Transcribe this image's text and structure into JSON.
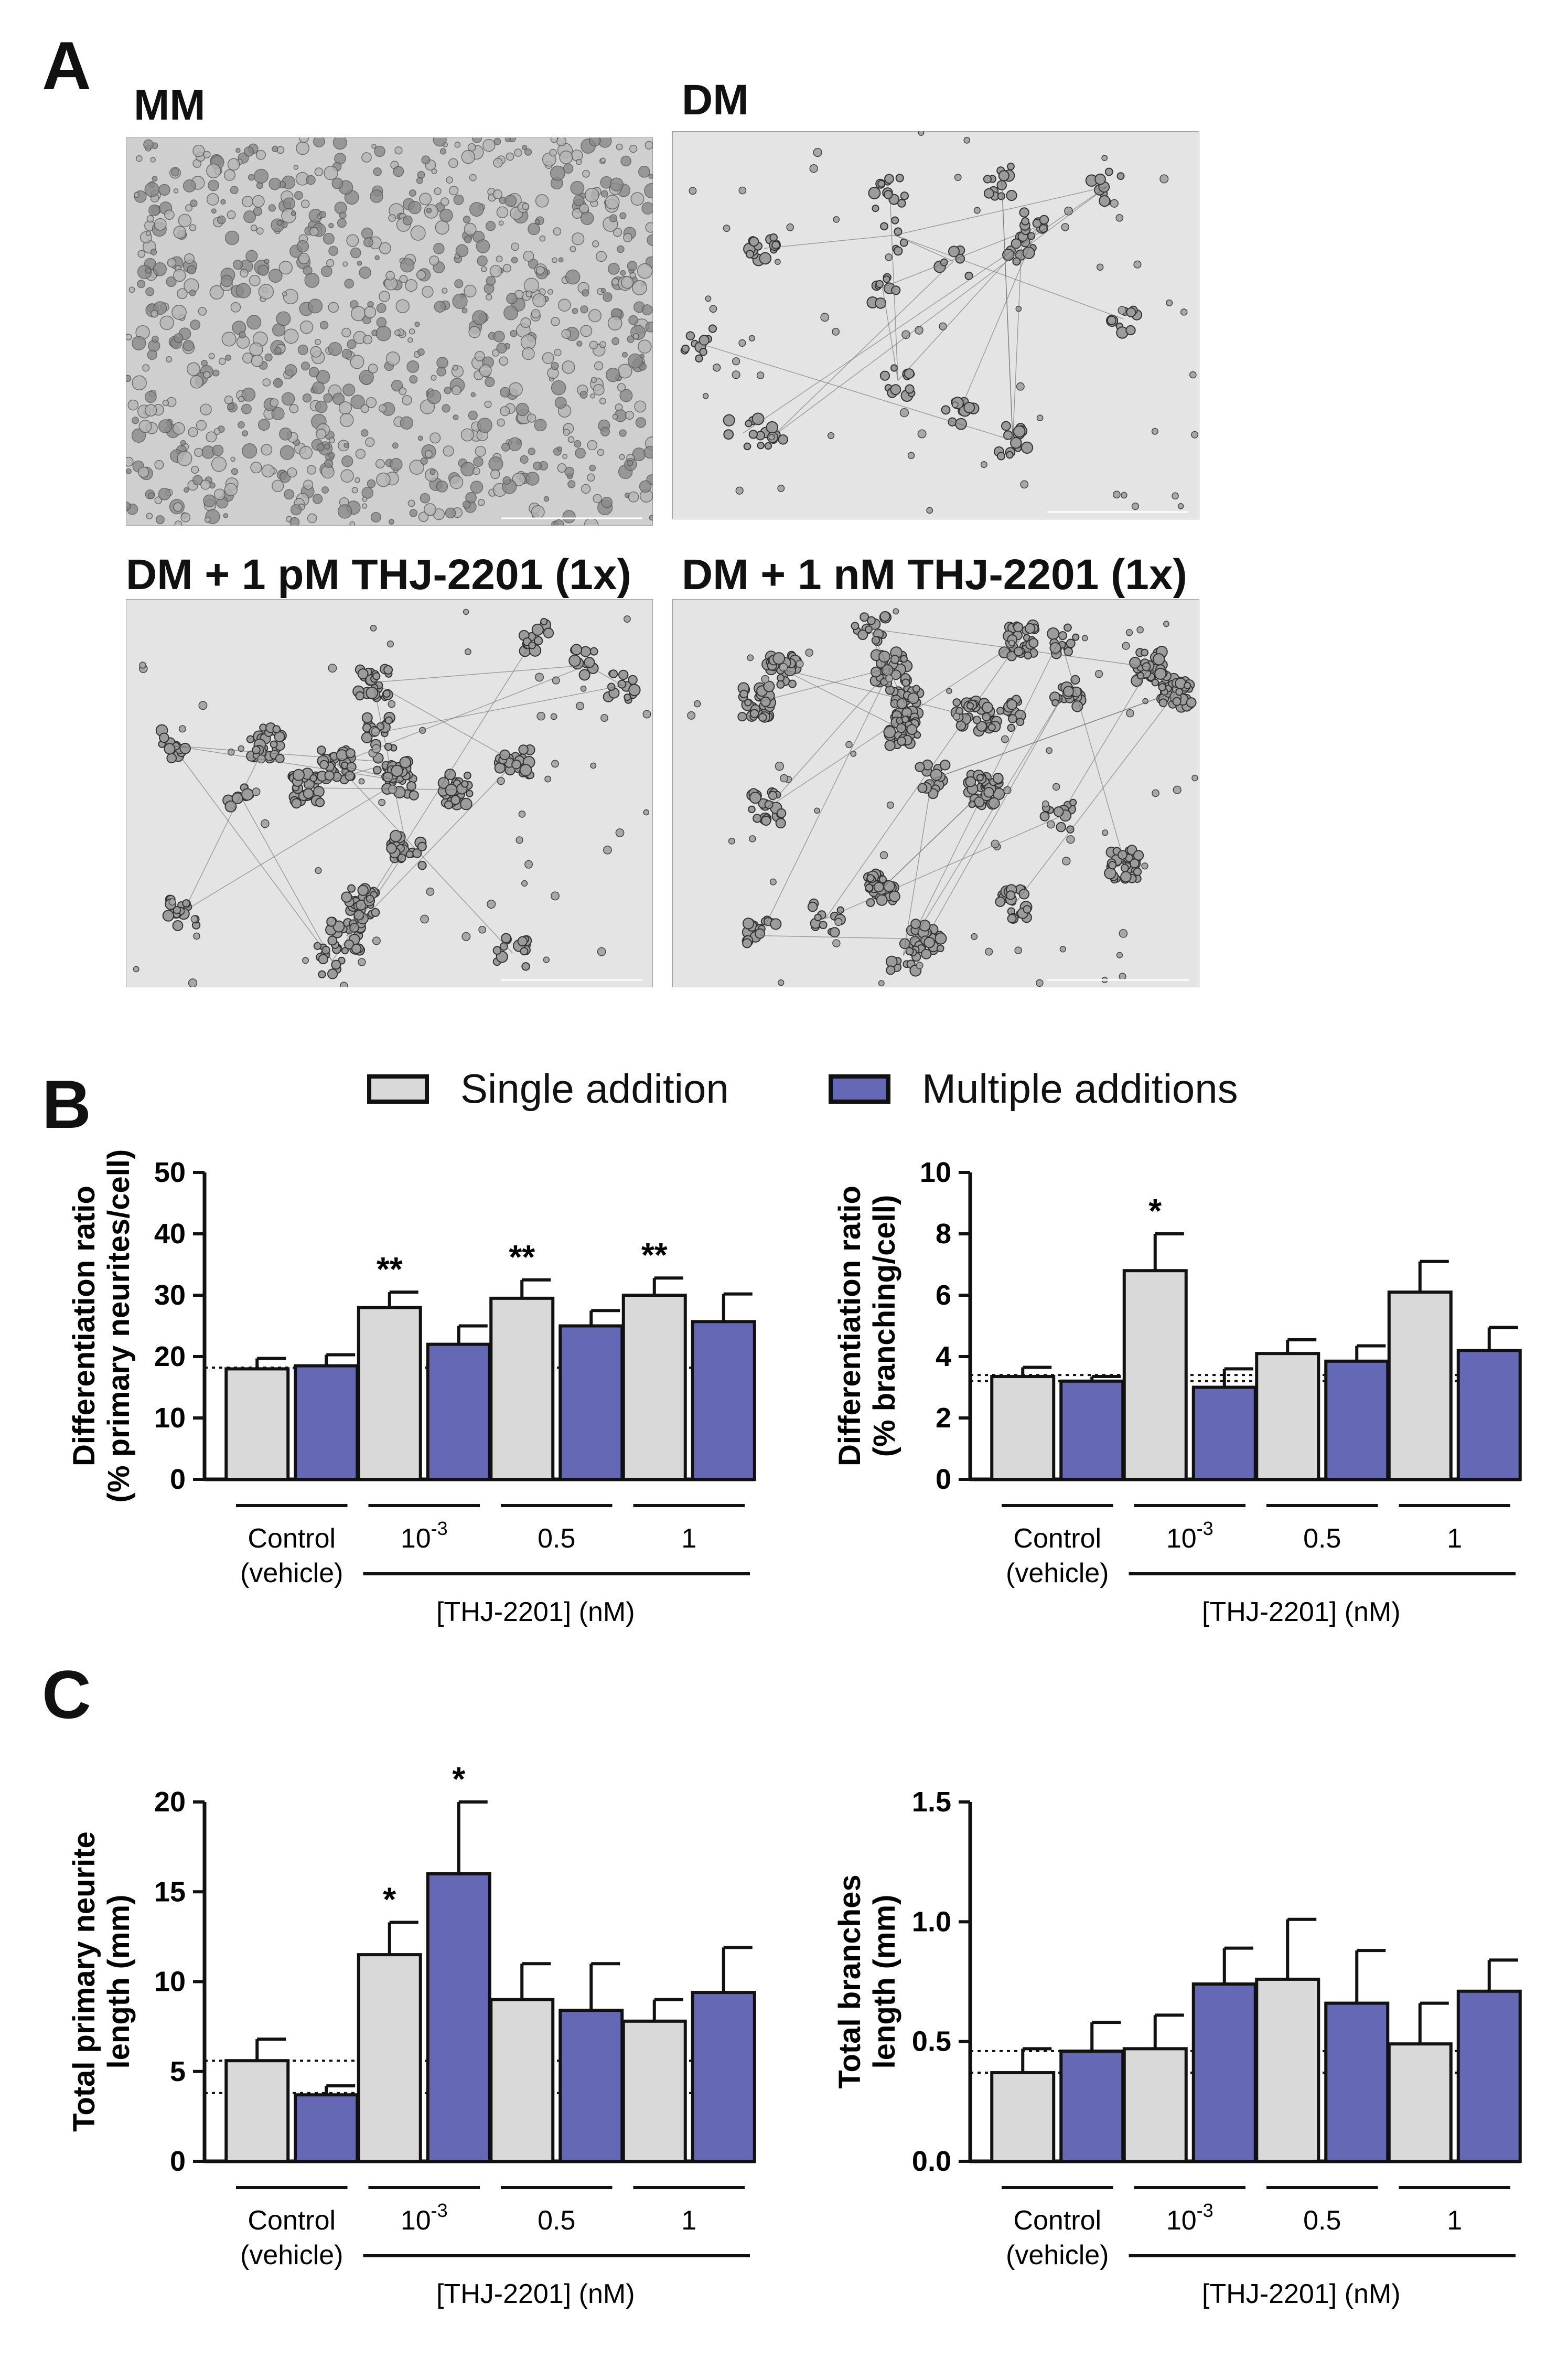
{
  "panels": {
    "A": {
      "letter": "A",
      "images": [
        {
          "label": "MM",
          "style": "dense"
        },
        {
          "label": "DM",
          "style": "sparse"
        },
        {
          "label": "DM + 1 pM THJ-2201 (1x)",
          "style": "clustered"
        },
        {
          "label": "DM + 1 nM THJ-2201  (1x)",
          "style": "clustered-heavy"
        }
      ]
    },
    "B": {
      "letter": "B"
    },
    "C": {
      "letter": "C"
    }
  },
  "legend": {
    "items": [
      {
        "label": "Single addition",
        "color": "#d9d9d9"
      },
      {
        "label": "Multiple additions",
        "color": "#6568b4"
      }
    ]
  },
  "colors": {
    "single": "#d9d9d9",
    "multiple": "#6568b4",
    "axis": "#111111"
  },
  "chart_data": [
    {
      "type": "bar",
      "ylabel": [
        "Differentiation ratio",
        "(% primary neurites/cell)"
      ],
      "ylim": [
        0,
        50
      ],
      "yticks": [
        0,
        10,
        20,
        30,
        40,
        50
      ],
      "categories": [
        "Control\n(vehicle)",
        "10-3",
        "0.5",
        "1"
      ],
      "group_label": "[THJ-2201] (nM)",
      "series": [
        {
          "name": "Single addition",
          "values": [
            18,
            28,
            29.5,
            30
          ],
          "errors": [
            1.7,
            2.5,
            3,
            2.8
          ]
        },
        {
          "name": "Multiple additions",
          "values": [
            18.5,
            22,
            25,
            25.7
          ],
          "errors": [
            1.8,
            3,
            2.5,
            4.5
          ]
        }
      ],
      "reference_lines": [
        18.2
      ],
      "annotations": [
        {
          "group": 1,
          "series": 0,
          "text": "**"
        },
        {
          "group": 2,
          "series": 0,
          "text": "**"
        },
        {
          "group": 3,
          "series": 0,
          "text": "**"
        }
      ]
    },
    {
      "type": "bar",
      "ylabel": [
        "Differentiation ratio",
        "(% branching/cell)"
      ],
      "ylim": [
        0,
        10
      ],
      "yticks": [
        0,
        2,
        4,
        6,
        8,
        10
      ],
      "categories": [
        "Control\n(vehicle)",
        "10-3",
        "0.5",
        "1"
      ],
      "group_label": "[THJ-2201] (nM)",
      "series": [
        {
          "name": "Single addition",
          "values": [
            3.35,
            6.8,
            4.1,
            6.1
          ],
          "errors": [
            0.3,
            1.2,
            0.45,
            1.0
          ]
        },
        {
          "name": "Multiple additions",
          "values": [
            3.2,
            3.0,
            3.85,
            4.2
          ],
          "errors": [
            0.15,
            0.6,
            0.5,
            0.75
          ]
        }
      ],
      "reference_lines": [
        3.2,
        3.4
      ],
      "annotations": [
        {
          "group": 1,
          "series": 0,
          "text": "*"
        }
      ]
    },
    {
      "type": "bar",
      "ylabel": [
        "Total primary neurite",
        "length (mm)"
      ],
      "ylim": [
        0,
        20
      ],
      "yticks": [
        0,
        5,
        10,
        15,
        20
      ],
      "categories": [
        "Control\n(vehicle)",
        "10-3",
        "0.5",
        "1"
      ],
      "group_label": "[THJ-2201] (nM)",
      "series": [
        {
          "name": "Single addition",
          "values": [
            5.6,
            11.5,
            9.0,
            7.8
          ],
          "errors": [
            1.2,
            1.8,
            2.0,
            1.2
          ]
        },
        {
          "name": "Multiple additions",
          "values": [
            3.7,
            16.0,
            8.4,
            9.4
          ],
          "errors": [
            0.5,
            4.0,
            2.6,
            2.5
          ]
        }
      ],
      "reference_lines": [
        5.6,
        3.8
      ],
      "annotations": [
        {
          "group": 1,
          "series": 0,
          "text": "*"
        },
        {
          "group": 1,
          "series": 1,
          "text": "*"
        }
      ]
    },
    {
      "type": "bar",
      "ylabel": [
        "Total branches",
        "length (mm)"
      ],
      "ylim": [
        0,
        1.5
      ],
      "yticks": [
        0,
        0.5,
        1,
        1.5
      ],
      "yticklabels": [
        "0.0",
        "0.5",
        "1.0",
        "1.5"
      ],
      "categories": [
        "Control\n(vehicle)",
        "10-3",
        "0.5",
        "1"
      ],
      "group_label": "[THJ-2201] (nM)",
      "series": [
        {
          "name": "Single addition",
          "values": [
            0.37,
            0.47,
            0.76,
            0.49
          ],
          "errors": [
            0.1,
            0.14,
            0.25,
            0.17
          ]
        },
        {
          "name": "Multiple additions",
          "values": [
            0.46,
            0.74,
            0.66,
            0.71
          ],
          "errors": [
            0.12,
            0.15,
            0.22,
            0.13
          ]
        }
      ],
      "reference_lines": [
        0.46,
        0.37
      ],
      "annotations": []
    }
  ]
}
